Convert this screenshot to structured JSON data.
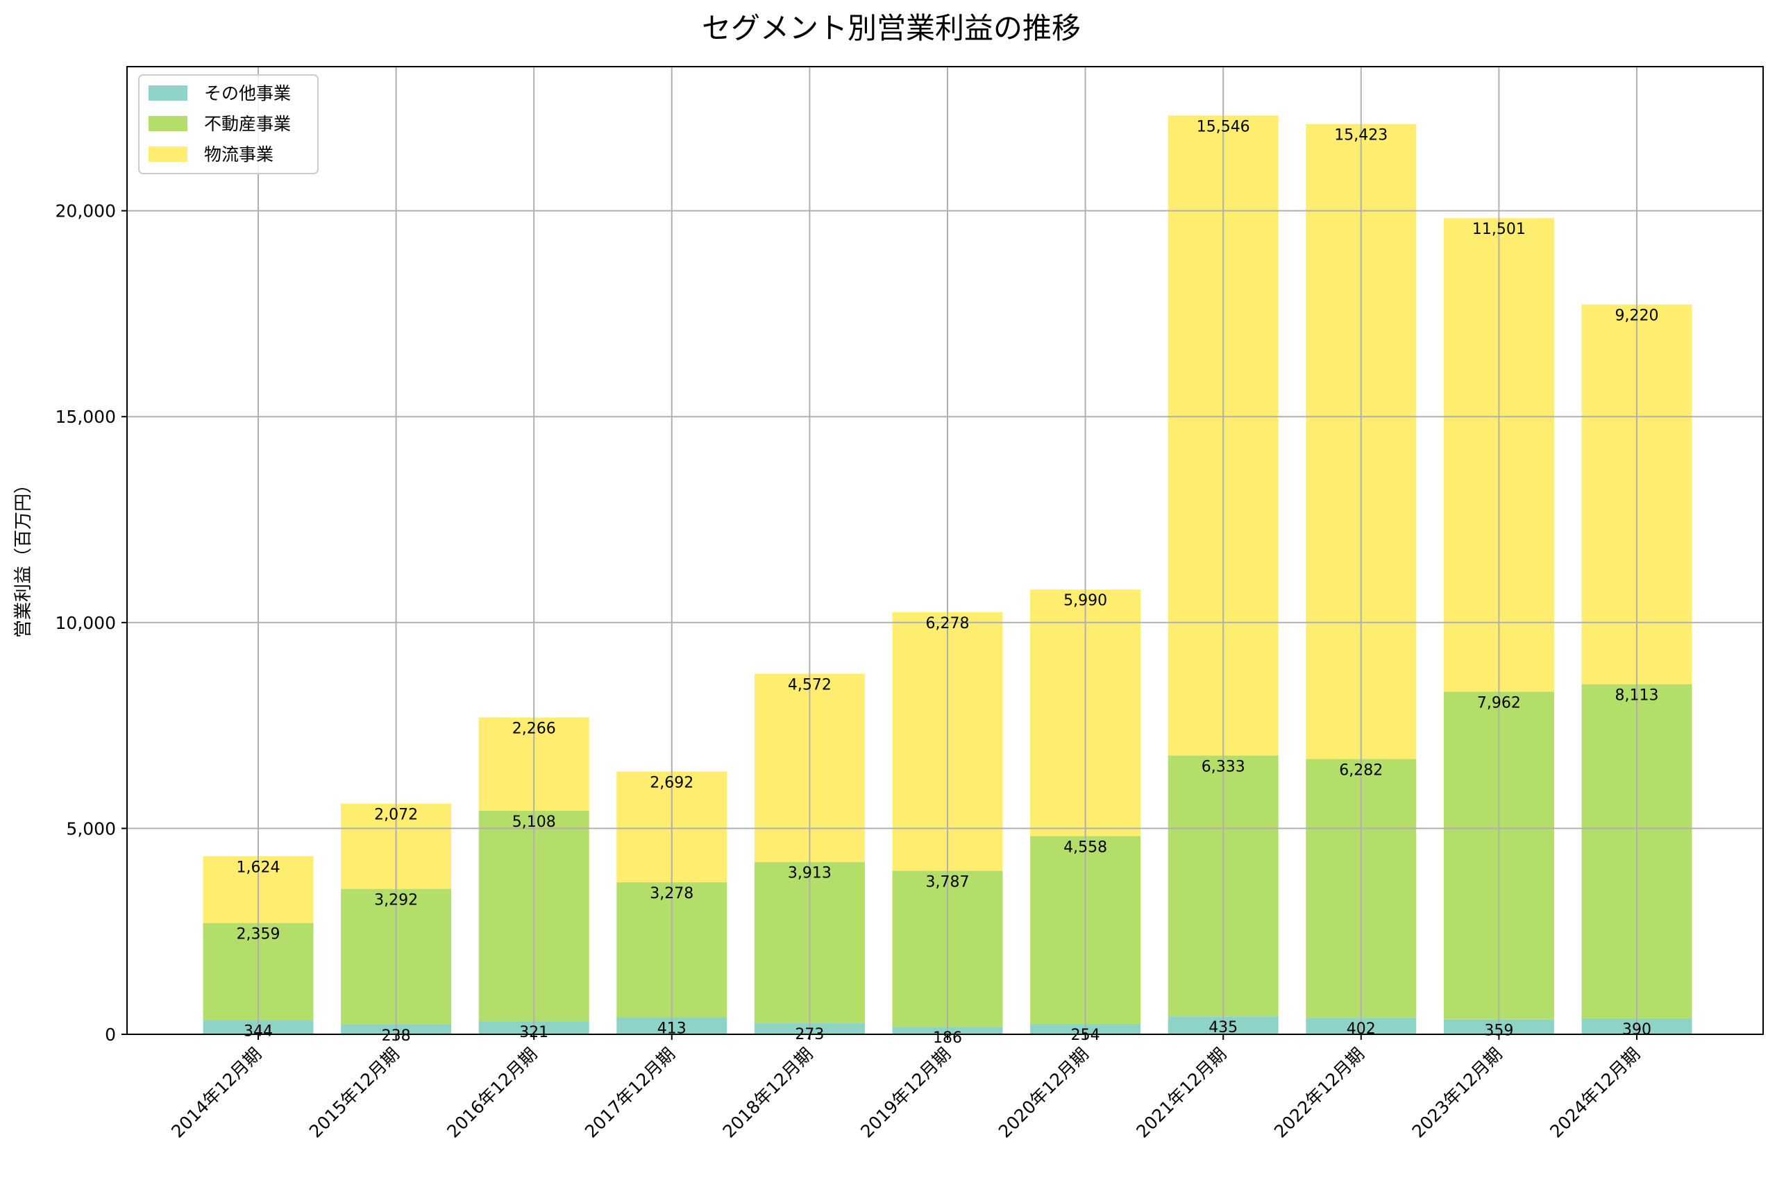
{
  "chart_data": {
    "type": "bar",
    "stacked": true,
    "title": "セグメント別営業利益の推移",
    "xlabel": "",
    "ylabel": "営業利益（百万円）",
    "ylim": [
      0,
      23500
    ],
    "yticks": [
      0,
      5000,
      10000,
      15000,
      20000
    ],
    "ytick_labels": [
      "0",
      "5,000",
      "10,000",
      "15,000",
      "20,000"
    ],
    "grid": true,
    "legend_position": "top-left",
    "categories": [
      "2014年12月期",
      "2015年12月期",
      "2016年12月期",
      "2017年12月期",
      "2018年12月期",
      "2019年12月期",
      "2020年12月期",
      "2021年12月期",
      "2022年12月期",
      "2023年12月期",
      "2024年12月期"
    ],
    "series": [
      {
        "name": "その他事業",
        "color": "#8dd3c7",
        "values": [
          344,
          238,
          321,
          413,
          273,
          186,
          254,
          435,
          402,
          359,
          390
        ],
        "labels": [
          "344",
          "238",
          "321",
          "413",
          "273",
          "186",
          "254",
          "435",
          "402",
          "359",
          "390"
        ]
      },
      {
        "name": "不動産事業",
        "color": "#b3de69",
        "values": [
          2359,
          3292,
          5108,
          3278,
          3913,
          3787,
          4558,
          6333,
          6282,
          7962,
          8113
        ],
        "labels": [
          "2,359",
          "3,292",
          "5,108",
          "3,278",
          "3,913",
          "3,787",
          "4,558",
          "6,333",
          "6,282",
          "7,962",
          "8,113"
        ]
      },
      {
        "name": "物流事業",
        "color": "#ffed6f",
        "values": [
          1624,
          2072,
          2266,
          2692,
          4572,
          6278,
          5990,
          15546,
          15423,
          11501,
          9220
        ],
        "labels": [
          "1,624",
          "2,072",
          "2,266",
          "2,692",
          "4,572",
          "6,278",
          "5,990",
          "15,546",
          "15,423",
          "11,501",
          "9,220"
        ]
      }
    ]
  }
}
